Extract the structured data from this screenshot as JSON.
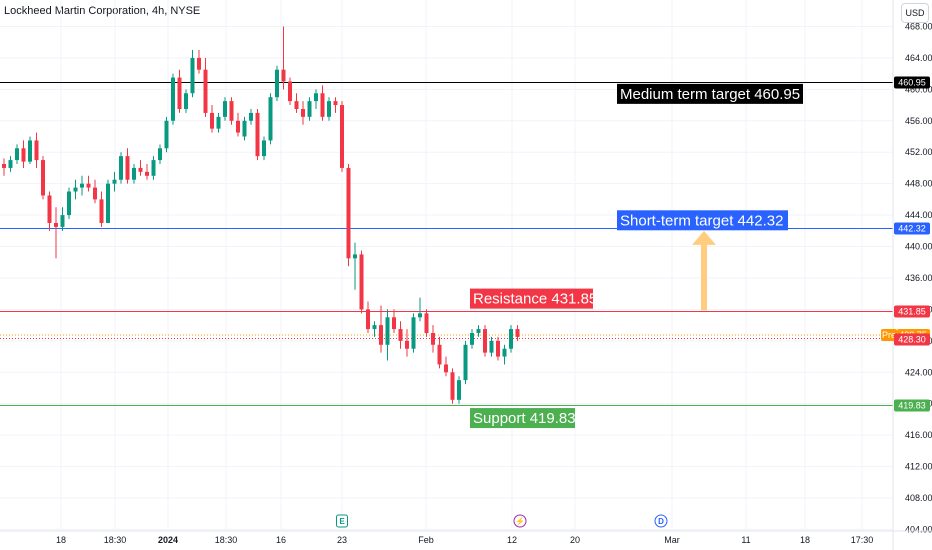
{
  "header": {
    "title": "Lockheed Martin Corporation, 4h, NYSE",
    "currency": "USD"
  },
  "chart_data": {
    "type": "candlestick",
    "symbol": "Lockheed Martin Corporation",
    "interval": "4h",
    "exchange": "NYSE",
    "ylim": [
      404,
      469
    ],
    "y_ticks": [
      404,
      408,
      412,
      416,
      420,
      424,
      428,
      432,
      436,
      440,
      444,
      448,
      452,
      456,
      460,
      464,
      468
    ],
    "x_ticks": [
      {
        "label": "18",
        "bold": false
      },
      {
        "label": "18:30",
        "bold": false
      },
      {
        "label": "2024",
        "bold": true
      },
      {
        "label": "18:30",
        "bold": false
      },
      {
        "label": "16",
        "bold": false
      },
      {
        "label": "23",
        "bold": false
      },
      {
        "label": "Feb",
        "bold": false
      },
      {
        "label": "12",
        "bold": false
      },
      {
        "label": "20",
        "bold": false
      },
      {
        "label": "Mar",
        "bold": false
      },
      {
        "label": "11",
        "bold": false
      },
      {
        "label": "18",
        "bold": false
      },
      {
        "label": "17:30",
        "bold": false
      }
    ],
    "candles": [
      [
        450.5,
        451.2,
        449.0,
        450.0
      ],
      [
        450.0,
        451.5,
        449.5,
        451.0
      ],
      [
        451.0,
        453.0,
        450.5,
        452.5
      ],
      [
        452.5,
        453.5,
        450.0,
        450.8
      ],
      [
        450.8,
        454.0,
        450.5,
        453.5
      ],
      [
        453.5,
        454.5,
        450.0,
        451.0
      ],
      [
        451.0,
        451.5,
        446.0,
        446.5
      ],
      [
        446.5,
        447.0,
        442.0,
        443.0
      ],
      [
        443.0,
        445.0,
        438.5,
        442.5
      ],
      [
        442.5,
        445.0,
        442.0,
        444.0
      ],
      [
        444.0,
        447.5,
        443.5,
        447.0
      ],
      [
        447.0,
        448.5,
        446.0,
        447.5
      ],
      [
        447.5,
        449.0,
        446.5,
        448.0
      ],
      [
        448.0,
        449.0,
        447.0,
        447.5
      ],
      [
        447.5,
        448.5,
        445.5,
        446.0
      ],
      [
        446.0,
        447.0,
        442.5,
        443.0
      ],
      [
        443.0,
        448.5,
        443.0,
        448.0
      ],
      [
        448.0,
        449.5,
        447.0,
        448.5
      ],
      [
        448.5,
        452.0,
        448.0,
        451.5
      ],
      [
        451.5,
        452.5,
        448.0,
        448.5
      ],
      [
        448.5,
        450.5,
        448.0,
        450.0
      ],
      [
        450.0,
        451.0,
        449.0,
        449.5
      ],
      [
        449.5,
        450.5,
        448.5,
        449.0
      ],
      [
        449.0,
        451.5,
        448.5,
        451.0
      ],
      [
        451.0,
        453.0,
        450.5,
        452.5
      ],
      [
        452.5,
        456.5,
        452.0,
        456.0
      ],
      [
        456.0,
        462.0,
        455.5,
        461.5
      ],
      [
        461.5,
        462.5,
        457.0,
        457.5
      ],
      [
        457.5,
        460.0,
        457.0,
        459.5
      ],
      [
        459.5,
        465.0,
        459.0,
        464.0
      ],
      [
        464.0,
        465.0,
        462.0,
        462.5
      ],
      [
        462.5,
        464.0,
        456.5,
        457.0
      ],
      [
        457.0,
        458.0,
        454.5,
        455.0
      ],
      [
        455.0,
        457.0,
        454.5,
        456.5
      ],
      [
        456.5,
        459.0,
        456.0,
        458.5
      ],
      [
        458.5,
        459.0,
        455.5,
        456.0
      ],
      [
        456.0,
        457.0,
        454.0,
        454.5
      ],
      [
        454.0,
        456.5,
        453.5,
        456.0
      ],
      [
        456.0,
        457.5,
        455.5,
        457.0
      ],
      [
        457.0,
        457.5,
        451.0,
        451.5
      ],
      [
        451.5,
        454.0,
        451.0,
        453.5
      ],
      [
        453.5,
        459.5,
        453.0,
        459.0
      ],
      [
        459.0,
        463.0,
        458.5,
        462.5
      ],
      [
        462.5,
        468.0,
        460.0,
        461.0
      ],
      [
        461.0,
        461.5,
        458.0,
        458.5
      ],
      [
        458.5,
        459.5,
        457.0,
        457.5
      ],
      [
        457.5,
        458.5,
        455.5,
        456.5
      ],
      [
        456.5,
        459.0,
        456.0,
        458.5
      ],
      [
        458.5,
        460.0,
        457.5,
        459.5
      ],
      [
        459.5,
        460.5,
        456.0,
        456.5
      ],
      [
        456.5,
        459.0,
        456.0,
        458.5
      ],
      [
        458.5,
        459.0,
        457.0,
        458.0
      ],
      [
        458.0,
        458.5,
        449.5,
        450.0
      ],
      [
        450.0,
        450.5,
        437.5,
        438.5
      ],
      [
        438.5,
        440.5,
        434.5,
        439.0
      ],
      [
        439.0,
        439.5,
        431.5,
        432.0
      ],
      [
        432.0,
        433.0,
        429.0,
        429.5
      ],
      [
        429.5,
        430.5,
        428.5,
        430.0
      ],
      [
        430.0,
        432.5,
        426.5,
        427.5
      ],
      [
        427.5,
        432.0,
        425.5,
        431.0
      ],
      [
        431.0,
        432.0,
        429.0,
        429.5
      ],
      [
        429.5,
        430.5,
        427.0,
        428.0
      ],
      [
        428.0,
        429.5,
        426.0,
        427.0
      ],
      [
        427.0,
        431.5,
        426.5,
        431.0
      ],
      [
        431.0,
        433.5,
        430.5,
        431.5
      ],
      [
        431.5,
        432.0,
        428.5,
        429.0
      ],
      [
        429.0,
        430.0,
        426.5,
        427.5
      ],
      [
        427.5,
        428.5,
        424.5,
        425.0
      ],
      [
        425.0,
        426.0,
        423.5,
        424.0
      ],
      [
        424.0,
        424.5,
        420.0,
        420.5
      ],
      [
        420.5,
        423.5,
        420.0,
        423.0
      ],
      [
        423.0,
        428.0,
        422.5,
        427.5
      ],
      [
        427.5,
        429.5,
        427.0,
        429.0
      ],
      [
        429.0,
        430.0,
        428.5,
        429.5
      ],
      [
        429.5,
        430.0,
        426.0,
        426.5
      ],
      [
        426.5,
        428.5,
        426.0,
        428.0
      ],
      [
        428.0,
        428.5,
        425.5,
        426.0
      ],
      [
        426.0,
        427.5,
        425.0,
        427.0
      ],
      [
        427.0,
        430.0,
        426.5,
        429.5
      ],
      [
        429.5,
        430.0,
        428.0,
        428.5
      ]
    ],
    "levels": [
      {
        "label": "Medium term target 460.95",
        "value": 460.95,
        "tag": "460.95",
        "color": "#000000",
        "labelColor": "#000000"
      },
      {
        "label": "Short-term target 442.32",
        "value": 442.32,
        "tag": "442.32",
        "color": "#2962ff",
        "labelColor": "#2962ff"
      },
      {
        "label": "Resistance 431.85",
        "value": 431.85,
        "tag": "431.85",
        "color": "#f23645",
        "labelColor": "#f23645"
      },
      {
        "label": "Support 419.83",
        "value": 419.83,
        "tag": "419.83",
        "color": "#4caf50",
        "labelColor": "#4caf50"
      }
    ],
    "premarket": {
      "badge": "Pre",
      "value": 428.75,
      "tag": "428.75",
      "color": "#ff9800"
    },
    "last_price": {
      "value": 428.3,
      "tag": "428.30",
      "color": "#f23645"
    },
    "events": [
      {
        "letter": "E",
        "color": "#089981"
      },
      {
        "letter": "⚡",
        "color": "#9c27b0"
      },
      {
        "letter": "D",
        "color": "#2962ff"
      }
    ],
    "colors": {
      "up": "#089981",
      "down": "#f23645",
      "grid": "#f0f3fa",
      "arrow": "#ffcc80"
    },
    "grid": true
  }
}
